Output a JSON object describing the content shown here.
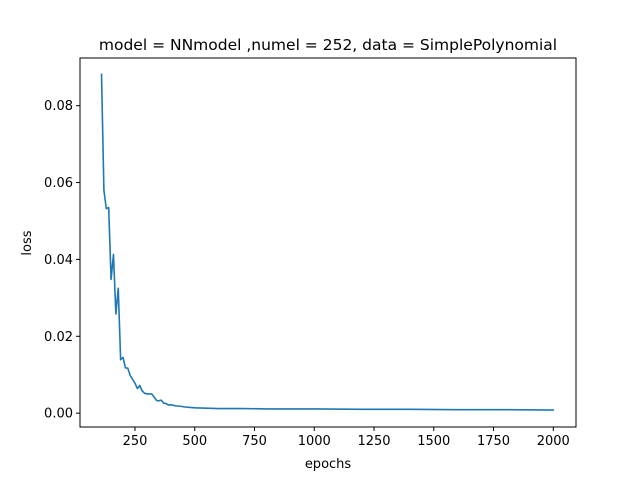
{
  "chart_data": {
    "type": "line",
    "title": "model = NNmodel ,numel = 252, data = SimplePolynomial",
    "xlabel": "epochs",
    "ylabel": "loss",
    "xlim": [
      20,
      2095
    ],
    "ylim": [
      -0.0036,
      0.0924
    ],
    "x_ticks": [
      250,
      500,
      750,
      1000,
      1250,
      1500,
      1750,
      2000
    ],
    "x_tick_labels": [
      "250",
      "500",
      "750",
      "1000",
      "1250",
      "1500",
      "1750",
      "2000"
    ],
    "y_ticks": [
      0.0,
      0.02,
      0.04,
      0.06,
      0.08
    ],
    "y_tick_labels": [
      "0.00",
      "0.02",
      "0.04",
      "0.06",
      "0.08"
    ],
    "grid": false,
    "legend": null,
    "series": [
      {
        "color": "#1f77b4",
        "x": [
          110,
          120,
          130,
          140,
          150,
          160,
          170,
          180,
          190,
          200,
          210,
          220,
          230,
          240,
          250,
          260,
          270,
          280,
          290,
          300,
          310,
          320,
          330,
          340,
          350,
          360,
          370,
          380,
          390,
          400,
          420,
          440,
          460,
          480,
          500,
          550,
          600,
          700,
          800,
          900,
          1000,
          1200,
          1400,
          1600,
          1800,
          2000
        ],
        "values": [
          0.0882,
          0.058,
          0.0532,
          0.0535,
          0.0348,
          0.0413,
          0.0258,
          0.0325,
          0.0139,
          0.0145,
          0.0118,
          0.0117,
          0.0098,
          0.0088,
          0.0078,
          0.0064,
          0.0072,
          0.0058,
          0.0052,
          0.005,
          0.005,
          0.005,
          0.0042,
          0.0033,
          0.0032,
          0.0034,
          0.0026,
          0.0025,
          0.0021,
          0.0022,
          0.0019,
          0.0018,
          0.0016,
          0.0015,
          0.0014,
          0.0013,
          0.0012,
          0.0012,
          0.0011,
          0.0011,
          0.0011,
          0.001,
          0.001,
          0.0009,
          0.0009,
          0.0008
        ]
      }
    ]
  }
}
